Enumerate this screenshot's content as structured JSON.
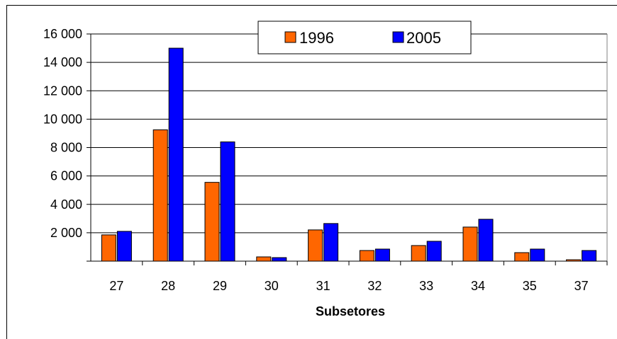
{
  "chart_data": {
    "type": "bar",
    "title": "",
    "xlabel": "Subsetores",
    "ylabel": "",
    "categories": [
      "27",
      "28",
      "29",
      "30",
      "31",
      "32",
      "33",
      "34",
      "35",
      "37"
    ],
    "series": [
      {
        "name": "1996",
        "color": "#ff6600",
        "values": [
          1850,
          9250,
          5550,
          300,
          2200,
          750,
          1100,
          2400,
          600,
          100
        ]
      },
      {
        "name": "2005",
        "color": "#0000ff",
        "values": [
          2100,
          15000,
          8400,
          250,
          2650,
          850,
          1400,
          2950,
          850,
          750
        ]
      }
    ],
    "ylim": [
      0,
      16000
    ],
    "yticks": [
      0,
      2000,
      4000,
      6000,
      8000,
      10000,
      12000,
      14000,
      16000
    ],
    "ytick_labels": [
      "",
      "2 000",
      "4 000",
      "6 000",
      "8 000",
      "10 000",
      "12 000",
      "14 000",
      "16 000"
    ],
    "grid": true,
    "legend_position": "top-center"
  }
}
